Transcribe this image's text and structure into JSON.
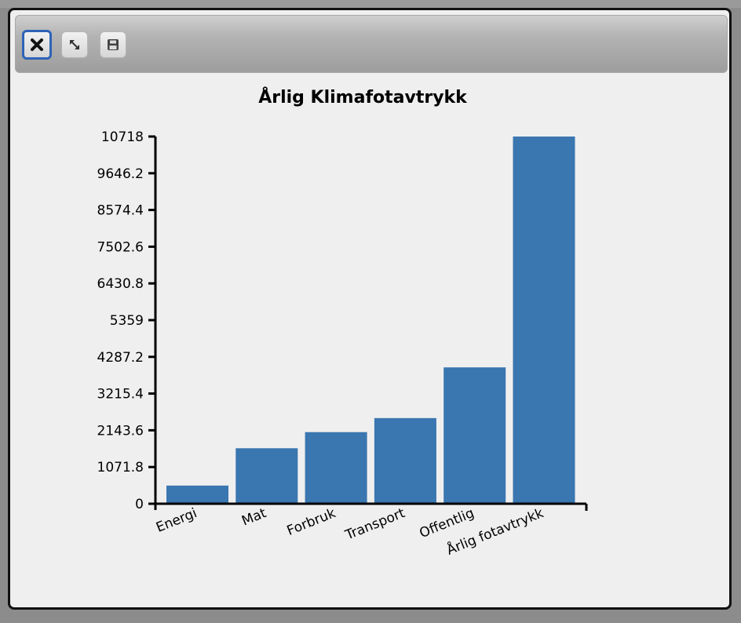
{
  "window": {
    "buttons": {
      "close": "close-icon",
      "resize": "resize-icon",
      "save": "save-icon"
    }
  },
  "colors": {
    "bar": "#3a76b0",
    "axis": "#000000",
    "close_focus": "#2e63b8"
  },
  "chart_data": {
    "type": "bar",
    "title": "Årlig Klimafotavtrykk",
    "xlabel": "",
    "ylabel": "",
    "categories": [
      "Energi",
      "Mat",
      "Forbruk",
      "Transport",
      "Offentlig",
      "Årlig fotavtrykk"
    ],
    "values": [
      530,
      1620,
      2090,
      2500,
      3980,
      10718
    ],
    "y_ticks": [
      "0",
      "1071.8",
      "2143.6",
      "3215.4",
      "4287.2",
      "5359",
      "6430.8",
      "7502.6",
      "8574.4",
      "9646.2",
      "10718"
    ],
    "ylim": [
      0,
      10718
    ],
    "grid": false,
    "legend": "none"
  }
}
